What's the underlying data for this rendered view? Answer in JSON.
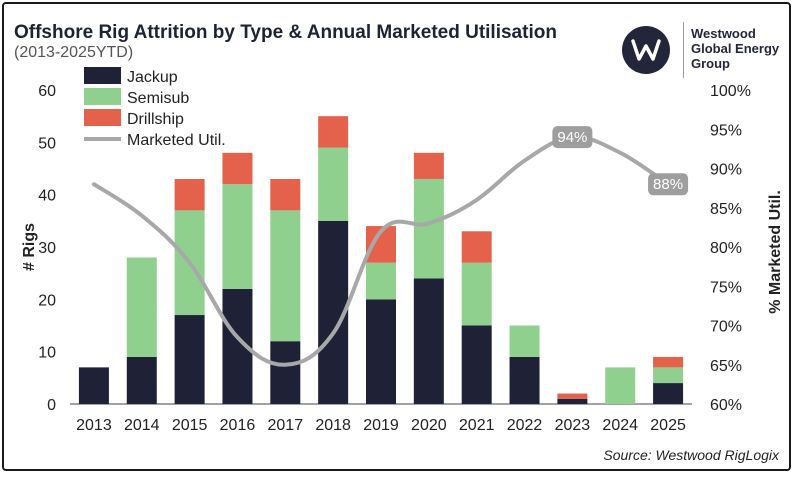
{
  "header": {
    "title": "Offshore Rig Attrition by Type & Annual Marketed Utilisation",
    "subtitle": "(2013-2025YTD)"
  },
  "logo": {
    "line1": "Westwood",
    "line2": "Global Energy",
    "line3": "Group",
    "icon": "w-monogram-icon"
  },
  "source": "Source: Westwood RigLogix",
  "colors": {
    "jackup": "#1f2237",
    "semisub": "#8fd08f",
    "drillship": "#e4614c",
    "util": "#a8a8a8",
    "callout": "#9e9e9e"
  },
  "chart_data": {
    "type": "bar",
    "stacked": true,
    "categories": [
      "2013",
      "2014",
      "2015",
      "2016",
      "2017",
      "2018",
      "2019",
      "2020",
      "2021",
      "2022",
      "2023",
      "2024",
      "2025"
    ],
    "series": [
      {
        "name": "Jackup",
        "values": [
          7,
          9,
          17,
          22,
          12,
          35,
          20,
          24,
          15,
          9,
          1,
          0,
          4
        ]
      },
      {
        "name": "Semisub",
        "values": [
          0,
          19,
          20,
          20,
          25,
          14,
          7,
          19,
          12,
          6,
          0,
          7,
          3
        ]
      },
      {
        "name": "Drillship",
        "values": [
          0,
          0,
          6,
          6,
          6,
          6,
          7,
          5,
          6,
          0,
          1,
          0,
          2
        ]
      }
    ],
    "line_series": {
      "name": "Marketed Util.",
      "axis": "right",
      "values": [
        0.88,
        0.84,
        0.78,
        0.685,
        0.65,
        0.69,
        0.82,
        0.83,
        0.86,
        0.91,
        0.94,
        0.92,
        0.88
      ],
      "labels": [
        {
          "index": 10,
          "text": "94%"
        },
        {
          "index": 12,
          "text": "88%"
        }
      ]
    },
    "left_axis": {
      "label": "# Rigs",
      "min": 0,
      "max": 60,
      "ticks": [
        "0",
        "10",
        "20",
        "30",
        "40",
        "50",
        "60"
      ]
    },
    "right_axis": {
      "label": "% Marketed Util.",
      "min": 0.6,
      "max": 1.0,
      "ticks": [
        "60%",
        "65%",
        "70%",
        "75%",
        "80%",
        "85%",
        "90%",
        "95%",
        "100%"
      ]
    },
    "legend": {
      "position": "top-left",
      "items": [
        {
          "label": "Jackup",
          "kind": "swatch",
          "color_key": "jackup"
        },
        {
          "label": "Semisub",
          "kind": "swatch",
          "color_key": "semisub"
        },
        {
          "label": "Drillship",
          "kind": "swatch",
          "color_key": "drillship"
        },
        {
          "label": "Marketed Util.",
          "kind": "line",
          "color_key": "util"
        }
      ]
    },
    "grid": false
  }
}
